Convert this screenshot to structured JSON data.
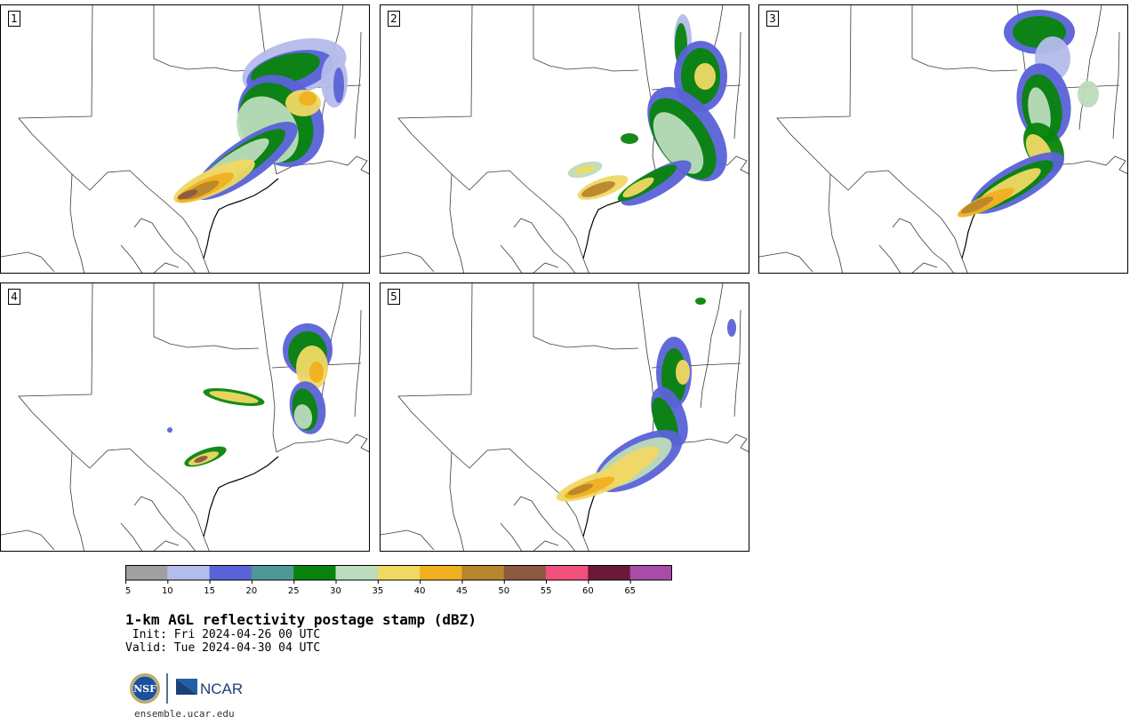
{
  "panels": [
    {
      "label": "1"
    },
    {
      "label": "2"
    },
    {
      "label": "3"
    },
    {
      "label": "4"
    },
    {
      "label": "5"
    }
  ],
  "colorbar": {
    "ticks": [
      "5",
      "10",
      "15",
      "20",
      "25",
      "30",
      "35",
      "40",
      "45",
      "50",
      "55",
      "60",
      "65"
    ],
    "colors": [
      "#a0a0a0",
      "#b4bcea",
      "#5a62d8",
      "#4f9898",
      "#08840c",
      "#bcdcbc",
      "#f0d864",
      "#f0b020",
      "#b8862c",
      "#8c5a40",
      "#f0507c",
      "#6c1838",
      "#a84ca8"
    ]
  },
  "title": {
    "main": "1-km AGL reflectivity postage stamp (dBZ)",
    "init": " Init: Fri 2024-04-26 00 UTC",
    "valid": "Valid: Tue 2024-04-30 04 UTC"
  },
  "footer": {
    "nsf_logo_text": "NSF",
    "ncar_logo_text": "NCAR",
    "url": "ensemble.ucar.edu"
  },
  "icons": [
    "nsf-logo-icon",
    "ncar-logo-icon"
  ]
}
